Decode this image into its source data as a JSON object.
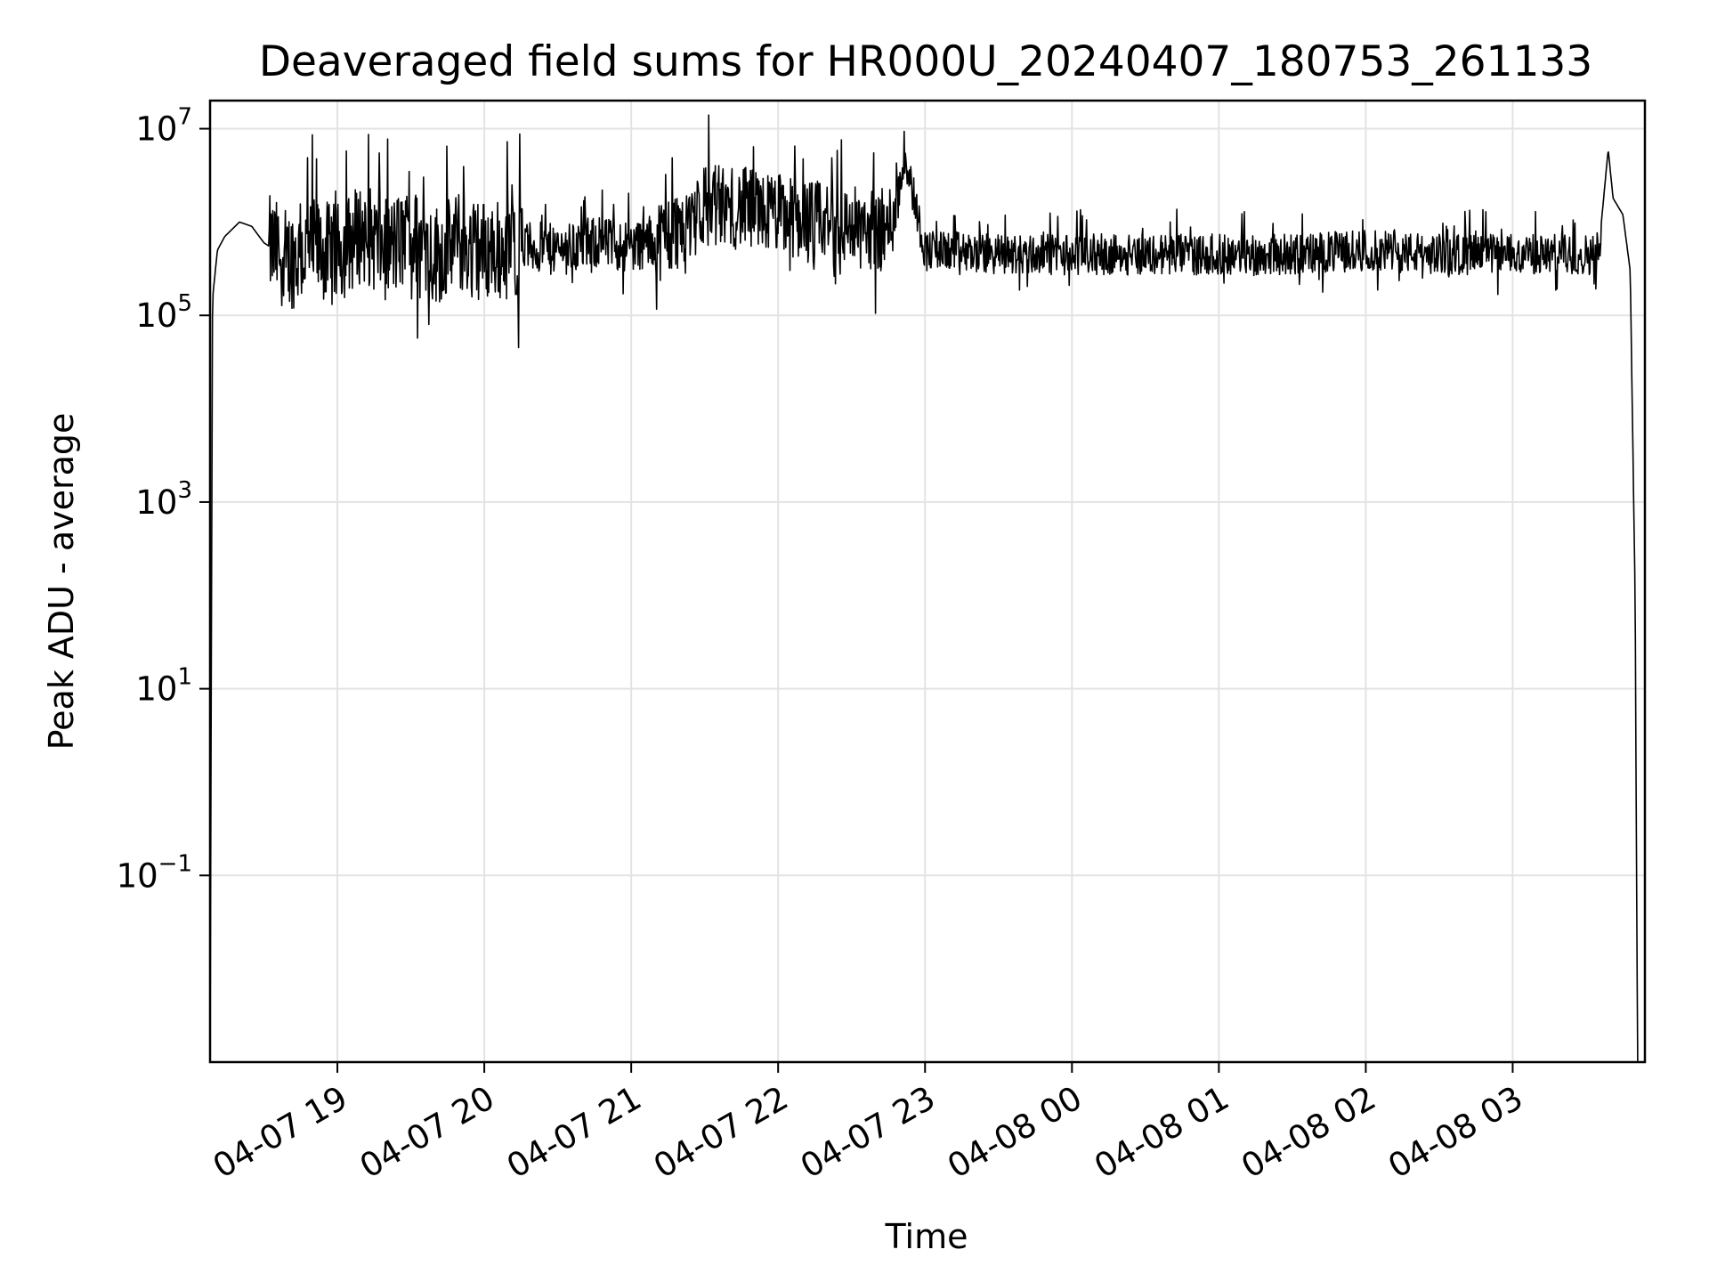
{
  "chart_data": {
    "type": "line",
    "title": "Deaveraged field sums for HR000U_20240407_180753_261133",
    "xlabel": "Time",
    "ylabel": "Peak ADU - average",
    "yscale": "log",
    "ylim": [
      0.001,
      20000000
    ],
    "xlim": [
      "2024-04-07 18:08",
      "2024-04-08 03:54"
    ],
    "grid": true,
    "legend": "none",
    "line_color": "#000000",
    "xticks": [
      {
        "label": "04-07 19",
        "time": "2024-04-07 19:00"
      },
      {
        "label": "04-07 20",
        "time": "2024-04-07 20:00"
      },
      {
        "label": "04-07 21",
        "time": "2024-04-07 21:00"
      },
      {
        "label": "04-07 22",
        "time": "2024-04-07 22:00"
      },
      {
        "label": "04-07 23",
        "time": "2024-04-07 23:00"
      },
      {
        "label": "04-08 00",
        "time": "2024-04-08 00:00"
      },
      {
        "label": "04-08 01",
        "time": "2024-04-08 01:00"
      },
      {
        "label": "04-08 02",
        "time": "2024-04-08 02:00"
      },
      {
        "label": "04-08 03",
        "time": "2024-04-08 03:00"
      }
    ],
    "yticks": [
      {
        "base": "10",
        "exp": "−1",
        "value": 0.1
      },
      {
        "base": "10",
        "exp": "1",
        "value": 10
      },
      {
        "base": "10",
        "exp": "3",
        "value": 1000
      },
      {
        "base": "10",
        "exp": "5",
        "value": 100000
      },
      {
        "base": "10",
        "exp": "7",
        "value": 10000000
      }
    ],
    "series": [
      {
        "points": [
          [
            "2024-04-07 18:08",
            0.001
          ],
          [
            "2024-04-07 18:09",
            150000
          ],
          [
            "2024-04-07 18:11",
            500000
          ],
          [
            "2024-04-07 18:14",
            700000
          ],
          [
            "2024-04-07 18:20",
            1000000
          ],
          [
            "2024-04-07 18:25",
            900000
          ],
          [
            "2024-04-07 18:30",
            600000
          ],
          [
            "2024-04-07 18:40",
            400000
          ],
          [
            "2024-04-07 18:50",
            500000
          ],
          [
            "2024-04-07 19:00",
            450000
          ],
          [
            "2024-04-07 19:10",
            800000
          ],
          [
            "2024-04-07 19:20",
            500000
          ],
          [
            "2024-04-07 19:30",
            700000
          ],
          [
            "2024-04-07 19:40",
            450000
          ],
          [
            "2024-04-07 19:50",
            600000
          ],
          [
            "2024-04-07 20:00",
            500000
          ],
          [
            "2024-04-07 20:15",
            550000
          ],
          [
            "2024-04-07 20:30",
            500000
          ],
          [
            "2024-04-07 20:45",
            600000
          ],
          [
            "2024-04-07 21:00",
            550000
          ],
          [
            "2024-04-07 21:15",
            700000
          ],
          [
            "2024-04-07 21:30",
            1500000
          ],
          [
            "2024-04-07 21:45",
            1400000
          ],
          [
            "2024-04-07 22:00",
            1200000
          ],
          [
            "2024-04-07 22:15",
            1000000
          ],
          [
            "2024-04-07 22:30",
            900000
          ],
          [
            "2024-04-07 22:45",
            800000
          ],
          [
            "2024-04-07 22:52",
            5000000
          ],
          [
            "2024-04-07 23:00",
            500000
          ],
          [
            "2024-04-07 23:30",
            450000
          ],
          [
            "2024-04-08 00:00",
            450000
          ],
          [
            "2024-04-08 00:30",
            450000
          ],
          [
            "2024-04-08 01:00",
            450000
          ],
          [
            "2024-04-08 01:30",
            450000
          ],
          [
            "2024-04-08 02:00",
            500000
          ],
          [
            "2024-04-08 02:30",
            450000
          ],
          [
            "2024-04-08 03:00",
            450000
          ],
          [
            "2024-04-08 03:35",
            450000
          ],
          [
            "2024-04-08 03:39",
            6000000
          ],
          [
            "2024-04-08 03:41",
            1800000
          ],
          [
            "2024-04-08 03:45",
            1200000
          ],
          [
            "2024-04-08 03:48",
            300000
          ],
          [
            "2024-04-08 03:50",
            100
          ],
          [
            "2024-04-08 03:51",
            0.001
          ]
        ]
      }
    ]
  }
}
